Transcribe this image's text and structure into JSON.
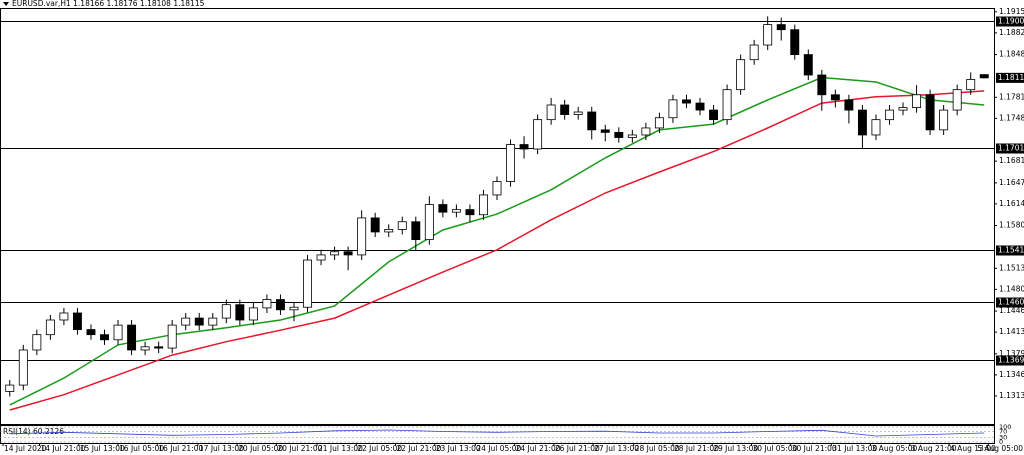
{
  "chart_data": {
    "type": "candlestick",
    "header": "EURUSD.var,H1 1.18166 1.18176 1.18108 1.18115",
    "color": "#000000",
    "xlim": [
      -0.5,
      72.5
    ],
    "xticks": [
      {
        "value": -0.5,
        "label": "14 Jul 2020"
      },
      {
        "value": 2.2,
        "label": "14 Jul 21:00"
      },
      {
        "value": 5.1,
        "label": "15 Jul 13:00"
      },
      {
        "value": 8.0,
        "label": "16 Jul 05:00"
      },
      {
        "value": 10.9,
        "label": "16 Jul 21:00"
      },
      {
        "value": 13.9,
        "label": "17 Jul 13:00"
      },
      {
        "value": 16.8,
        "label": "20 Jul 05:00"
      },
      {
        "value": 19.7,
        "label": "20 Jul 21:00"
      },
      {
        "value": 22.7,
        "label": "21 Jul 13:00"
      },
      {
        "value": 25.6,
        "label": "22 Jul 05:00"
      },
      {
        "value": 28.5,
        "label": "22 Jul 21:00"
      },
      {
        "value": 31.4,
        "label": "23 Jul 13:00"
      },
      {
        "value": 34.4,
        "label": "24 Jul 05:00"
      },
      {
        "value": 37.3,
        "label": "24 Jul 21:00"
      },
      {
        "value": 40.2,
        "label": "26 Jul 21:00"
      },
      {
        "value": 43.1,
        "label": "27 Jul 13:00"
      },
      {
        "value": 46.1,
        "label": "28 Jul 05:00"
      },
      {
        "value": 49.0,
        "label": "28 Jul 21:00"
      },
      {
        "value": 51.9,
        "label": "29 Jul 13:00"
      },
      {
        "value": 54.8,
        "label": "30 Jul 05:00"
      },
      {
        "value": 57.7,
        "label": "30 Jul 21:00"
      },
      {
        "value": 60.7,
        "label": "31 Jul 13:00"
      },
      {
        "value": 63.6,
        "label": "3 Aug 05:00"
      },
      {
        "value": 66.5,
        "label": "3 Aug 21:00"
      },
      {
        "value": 69.4,
        "label": "4 Aug 13:00"
      },
      {
        "value": 72.3,
        "label": "5 Aug 05:00"
      }
    ],
    "ylim": [
      1.1269,
      1.1921
    ],
    "yticks": [
      {
        "value": 1.1915,
        "label": "1.19150"
      },
      {
        "value": 1.1882,
        "label": "1.18820"
      },
      {
        "value": 1.1848,
        "label": "1.18480"
      },
      {
        "value": 1.1781,
        "label": "1.17810"
      },
      {
        "value": 1.1748,
        "label": "1.17480"
      },
      {
        "value": 1.1681,
        "label": "1.16810"
      },
      {
        "value": 1.1647,
        "label": "1.16470"
      },
      {
        "value": 1.1614,
        "label": "1.16140"
      },
      {
        "value": 1.158,
        "label": "1.15800"
      },
      {
        "value": 1.1513,
        "label": "1.15130"
      },
      {
        "value": 1.148,
        "label": "1.14800"
      },
      {
        "value": 1.1446,
        "label": "1.14460"
      },
      {
        "value": 1.1413,
        "label": "1.14130"
      },
      {
        "value": 1.1379,
        "label": "1.13790"
      },
      {
        "value": 1.1346,
        "label": "1.13460"
      },
      {
        "value": 1.1313,
        "label": "1.13130"
      }
    ],
    "price_lines": [
      {
        "value": 1.19,
        "label": "1.19000"
      },
      {
        "value": 1.17019,
        "label": "1.17019"
      },
      {
        "value": 1.15415,
        "label": "1.15415"
      },
      {
        "value": 1.14602,
        "label": "1.14602"
      },
      {
        "value": 1.13691,
        "label": "1.13691"
      }
    ],
    "current_price": {
      "value": 1.18115,
      "label": "1.18115"
    },
    "candles": [
      [
        1.132,
        1.1338,
        1.1312,
        1.133
      ],
      [
        1.133,
        1.1393,
        1.1322,
        1.1385
      ],
      [
        1.1385,
        1.1417,
        1.1377,
        1.1409
      ],
      [
        1.1409,
        1.144,
        1.1401,
        1.1432
      ],
      [
        1.1432,
        1.1451,
        1.1424,
        1.1443
      ],
      [
        1.1443,
        1.1451,
        1.1409,
        1.1417
      ],
      [
        1.1417,
        1.1425,
        1.1401,
        1.1409
      ],
      [
        1.1409,
        1.1417,
        1.1393,
        1.1401
      ],
      [
        1.1401,
        1.1432,
        1.1393,
        1.1424
      ],
      [
        1.1424,
        1.1432,
        1.1377,
        1.1385
      ],
      [
        1.1385,
        1.1398,
        1.1377,
        1.139
      ],
      [
        1.139,
        1.1398,
        1.138,
        1.1388
      ],
      [
        1.1388,
        1.1432,
        1.138,
        1.1424
      ],
      [
        1.1424,
        1.1443,
        1.1416,
        1.1435
      ],
      [
        1.1435,
        1.1443,
        1.1416,
        1.1424
      ],
      [
        1.1424,
        1.1443,
        1.1416,
        1.1435
      ],
      [
        1.1435,
        1.1464,
        1.1427,
        1.1456
      ],
      [
        1.1456,
        1.1464,
        1.1424,
        1.1432
      ],
      [
        1.1432,
        1.1459,
        1.1424,
        1.1451
      ],
      [
        1.1451,
        1.1472,
        1.1443,
        1.1464
      ],
      [
        1.1464,
        1.1472,
        1.144,
        1.1448
      ],
      [
        1.1448,
        1.146,
        1.143,
        1.1452
      ],
      [
        1.1452,
        1.1534,
        1.1444,
        1.1526
      ],
      [
        1.1526,
        1.1542,
        1.1518,
        1.1534
      ],
      [
        1.1534,
        1.1547,
        1.1526,
        1.1539
      ],
      [
        1.1539,
        1.1547,
        1.151,
        1.1534
      ],
      [
        1.1534,
        1.1604,
        1.1526,
        1.1592
      ],
      [
        1.1592,
        1.16,
        1.1562,
        1.157
      ],
      [
        1.157,
        1.1582,
        1.1562,
        1.1574
      ],
      [
        1.1574,
        1.1594,
        1.1566,
        1.1586
      ],
      [
        1.1586,
        1.1594,
        1.154,
        1.1558
      ],
      [
        1.1558,
        1.1626,
        1.155,
        1.1613
      ],
      [
        1.1613,
        1.1621,
        1.1593,
        1.1601
      ],
      [
        1.1601,
        1.1613,
        1.1593,
        1.1605
      ],
      [
        1.1605,
        1.1613,
        1.1585,
        1.1597
      ],
      [
        1.1597,
        1.1636,
        1.1589,
        1.1628
      ],
      [
        1.1628,
        1.1657,
        1.162,
        1.1649
      ],
      [
        1.1649,
        1.1715,
        1.1641,
        1.1707
      ],
      [
        1.1707,
        1.172,
        1.1685,
        1.17
      ],
      [
        1.17,
        1.1754,
        1.1692,
        1.1746
      ],
      [
        1.1746,
        1.178,
        1.1738,
        1.1769
      ],
      [
        1.1769,
        1.1777,
        1.1746,
        1.1754
      ],
      [
        1.1754,
        1.1766,
        1.1746,
        1.1758
      ],
      [
        1.1758,
        1.1766,
        1.1715,
        1.173
      ],
      [
        1.173,
        1.1738,
        1.1712,
        1.1726
      ],
      [
        1.1726,
        1.1734,
        1.171,
        1.1718
      ],
      [
        1.1718,
        1.173,
        1.171,
        1.1722
      ],
      [
        1.1722,
        1.1741,
        1.1714,
        1.1733
      ],
      [
        1.1733,
        1.1757,
        1.1725,
        1.1749
      ],
      [
        1.1749,
        1.1785,
        1.1741,
        1.1777
      ],
      [
        1.1777,
        1.1785,
        1.1764,
        1.1772
      ],
      [
        1.1772,
        1.178,
        1.1753,
        1.1761
      ],
      [
        1.1761,
        1.1769,
        1.1738,
        1.1746
      ],
      [
        1.1746,
        1.1801,
        1.1738,
        1.1793
      ],
      [
        1.1793,
        1.1848,
        1.1785,
        1.184
      ],
      [
        1.184,
        1.1871,
        1.1832,
        1.1863
      ],
      [
        1.1863,
        1.1908,
        1.1855,
        1.1895
      ],
      [
        1.1895,
        1.1906,
        1.187,
        1.1887
      ],
      [
        1.1887,
        1.1895,
        1.184,
        1.1848
      ],
      [
        1.1848,
        1.1856,
        1.1808,
        1.1816
      ],
      [
        1.1816,
        1.1824,
        1.176,
        1.1785
      ],
      [
        1.1785,
        1.1793,
        1.1765,
        1.1777
      ],
      [
        1.1777,
        1.1785,
        1.174,
        1.1761
      ],
      [
        1.1761,
        1.1769,
        1.17,
        1.1722
      ],
      [
        1.1722,
        1.1754,
        1.1714,
        1.1746
      ],
      [
        1.1746,
        1.1769,
        1.1738,
        1.1761
      ],
      [
        1.1761,
        1.1773,
        1.1753,
        1.1765
      ],
      [
        1.1765,
        1.18,
        1.1757,
        1.1785
      ],
      [
        1.1785,
        1.1793,
        1.1722,
        1.173
      ],
      [
        1.173,
        1.1769,
        1.1722,
        1.1761
      ],
      [
        1.1761,
        1.1801,
        1.1753,
        1.1793
      ],
      [
        1.1793,
        1.182,
        1.1785,
        1.1809
      ],
      [
        1.18166,
        1.18176,
        1.18108,
        1.18115
      ]
    ],
    "ma_x": [
      0,
      4,
      8,
      12,
      16,
      20,
      24,
      28,
      32,
      36,
      40,
      44,
      48,
      52,
      56,
      60,
      64,
      68,
      72
    ],
    "ma_series": [
      {
        "color": "#1a9a1a",
        "values": [
          1.1299,
          1.1341,
          1.1393,
          1.1409,
          1.142,
          1.1432,
          1.1454,
          1.1523,
          1.1573,
          1.1598,
          1.1636,
          1.1686,
          1.173,
          1.1739,
          1.1777,
          1.1812,
          1.1805,
          1.1777,
          1.1769
        ]
      },
      {
        "color": "#e8152b",
        "values": [
          1.1291,
          1.1315,
          1.1346,
          1.1377,
          1.1398,
          1.1416,
          1.1435,
          1.1471,
          1.1507,
          1.1542,
          1.1589,
          1.1631,
          1.1664,
          1.1696,
          1.1733,
          1.1772,
          1.1782,
          1.1785,
          1.1791
        ]
      }
    ],
    "rsi": {
      "title": "RSI(14) 60.2126",
      "color": "#3344cc",
      "ylim": [
        0,
        100
      ],
      "yticks": [
        100,
        70,
        30,
        0
      ],
      "values": [
        55,
        65,
        55,
        45,
        50,
        60,
        75,
        80,
        70,
        65,
        70,
        72,
        60,
        60,
        70,
        78,
        40,
        50,
        60
      ]
    }
  }
}
